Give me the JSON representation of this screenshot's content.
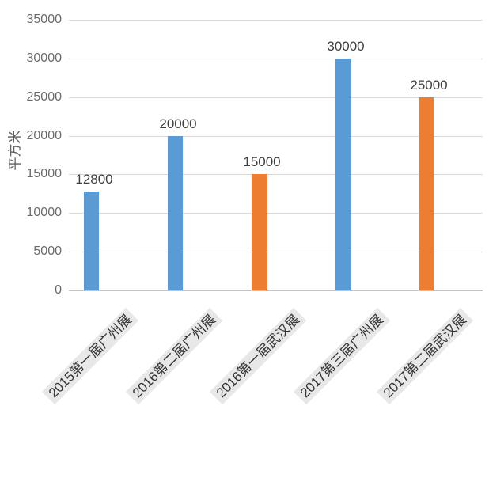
{
  "chart_data": {
    "type": "bar",
    "title": "",
    "xlabel": "",
    "ylabel": "平方米",
    "categories": [
      "2015第一届广州展",
      "2016第二届广州展",
      "2016第一届武汉展",
      "2017第三届广州展",
      "2017第二届武汉展"
    ],
    "values": [
      12800,
      20000,
      15000,
      30000,
      25000
    ],
    "data_labels": [
      "12800",
      "20000",
      "15000",
      "30000",
      "25000"
    ],
    "bar_colors": [
      "#5B9BD5",
      "#5B9BD5",
      "#ED7D31",
      "#5B9BD5",
      "#ED7D31"
    ],
    "ylim": [
      0,
      35000
    ],
    "ytick_step": 5000,
    "ytick_labels": [
      "0",
      "5000",
      "10000",
      "15000",
      "20000",
      "25000",
      "30000",
      "35000"
    ],
    "grid": "horizontal-only",
    "legend": "none"
  },
  "colors": {
    "blue_series": "#5B9BD5",
    "orange_series": "#ED7D31",
    "gridline": "#d9d9d9",
    "axis_line": "#c2c2c2",
    "tick_text": "#6b6b6b",
    "value_label_text": "#3f3f3f",
    "category_label_text": "#333333",
    "category_label_bg": "#e8e8e8",
    "background": "#ffffff"
  }
}
